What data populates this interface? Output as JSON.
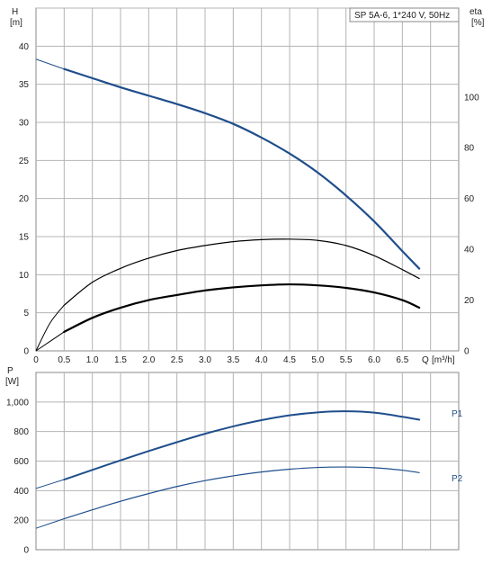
{
  "chart_data": [
    {
      "type": "line",
      "title": "",
      "legend_box": "SP 5A-6, 1*240 V, 50Hz",
      "xlabel": "Q",
      "xunit": "[m³/h]",
      "ylabel": "H",
      "yunit": "[m]",
      "y2label": "eta",
      "y2unit": "[%]",
      "xlim": [
        0,
        7.5
      ],
      "ylim": [
        0,
        45
      ],
      "y2lim": [
        0,
        135
      ],
      "x_ticks": [
        "0",
        "0.5",
        "1.0",
        "1.5",
        "2.0",
        "2.5",
        "3.0",
        "3.5",
        "4.0",
        "4.5",
        "5.0",
        "5.5",
        "6.0",
        "6.5"
      ],
      "y_ticks": [
        "0",
        "5",
        "10",
        "15",
        "20",
        "25",
        "30",
        "35",
        "40"
      ],
      "y2_ticks": [
        "0",
        "20",
        "40",
        "60",
        "80",
        "100"
      ],
      "grid": true,
      "series": [
        {
          "axis": "left",
          "color": "#1f4e8c",
          "points": [
            [
              0,
              38.3
            ],
            [
              0.5,
              37.0
            ],
            [
              1.0,
              35.8
            ],
            [
              1.5,
              34.6
            ],
            [
              2.0,
              33.5
            ],
            [
              2.5,
              32.4
            ],
            [
              3.0,
              31.2
            ],
            [
              3.5,
              29.8
            ],
            [
              4.0,
              28.0
            ],
            [
              4.5,
              25.9
            ],
            [
              5.0,
              23.4
            ],
            [
              5.5,
              20.4
            ],
            [
              6.0,
              17.0
            ],
            [
              6.5,
              13.1
            ],
            [
              6.8,
              10.8
            ]
          ]
        },
        {
          "axis": "right",
          "color": "#000000",
          "points": [
            [
              0,
              0
            ],
            [
              0.25,
              11
            ],
            [
              0.5,
              18
            ],
            [
              1.0,
              27
            ],
            [
              1.5,
              32.5
            ],
            [
              2.0,
              36.5
            ],
            [
              2.5,
              39.5
            ],
            [
              3.0,
              41.5
            ],
            [
              3.5,
              43
            ],
            [
              4.0,
              43.8
            ],
            [
              4.5,
              44
            ],
            [
              5.0,
              43.5
            ],
            [
              5.5,
              41.5
            ],
            [
              6.0,
              37.5
            ],
            [
              6.5,
              32
            ],
            [
              6.8,
              28.5
            ]
          ]
        },
        {
          "axis": "right",
          "color": "#000000",
          "points": [
            [
              0,
              0
            ],
            [
              0.5,
              7.5
            ],
            [
              1.0,
              13
            ],
            [
              1.5,
              17
            ],
            [
              2.0,
              20
            ],
            [
              2.5,
              22
            ],
            [
              3.0,
              23.8
            ],
            [
              3.5,
              25
            ],
            [
              4.0,
              25.8
            ],
            [
              4.5,
              26.2
            ],
            [
              5.0,
              25.8
            ],
            [
              5.5,
              24.8
            ],
            [
              6.0,
              23
            ],
            [
              6.5,
              20
            ],
            [
              6.8,
              17
            ]
          ]
        }
      ]
    },
    {
      "type": "line",
      "title": "",
      "ylabel": "P",
      "yunit": "[W]",
      "xlim": [
        0,
        7.5
      ],
      "ylim": [
        0,
        1200
      ],
      "y_ticks": [
        "0",
        "200",
        "400",
        "600",
        "800",
        "1,000"
      ],
      "y_tick_values": [
        0,
        200,
        400,
        600,
        800,
        1000
      ],
      "grid": true,
      "series": [
        {
          "name": "P1",
          "color": "#1f4e8c",
          "points": [
            [
              0,
              415
            ],
            [
              0.5,
              475
            ],
            [
              1.0,
              540
            ],
            [
              1.5,
              605
            ],
            [
              2.0,
              668
            ],
            [
              2.5,
              728
            ],
            [
              3.0,
              785
            ],
            [
              3.5,
              835
            ],
            [
              4.0,
              877
            ],
            [
              4.5,
              910
            ],
            [
              5.0,
              930
            ],
            [
              5.5,
              937
            ],
            [
              6.0,
              928
            ],
            [
              6.5,
              900
            ],
            [
              6.8,
              880
            ]
          ]
        },
        {
          "name": "P2",
          "color": "#1f4e8c",
          "points": [
            [
              0,
              145
            ],
            [
              0.5,
              210
            ],
            [
              1.0,
              270
            ],
            [
              1.5,
              328
            ],
            [
              2.0,
              380
            ],
            [
              2.5,
              428
            ],
            [
              3.0,
              468
            ],
            [
              3.5,
              500
            ],
            [
              4.0,
              526
            ],
            [
              4.5,
              545
            ],
            [
              5.0,
              557
            ],
            [
              5.5,
              560
            ],
            [
              6.0,
              555
            ],
            [
              6.5,
              538
            ],
            [
              6.8,
              522
            ]
          ]
        }
      ]
    }
  ]
}
